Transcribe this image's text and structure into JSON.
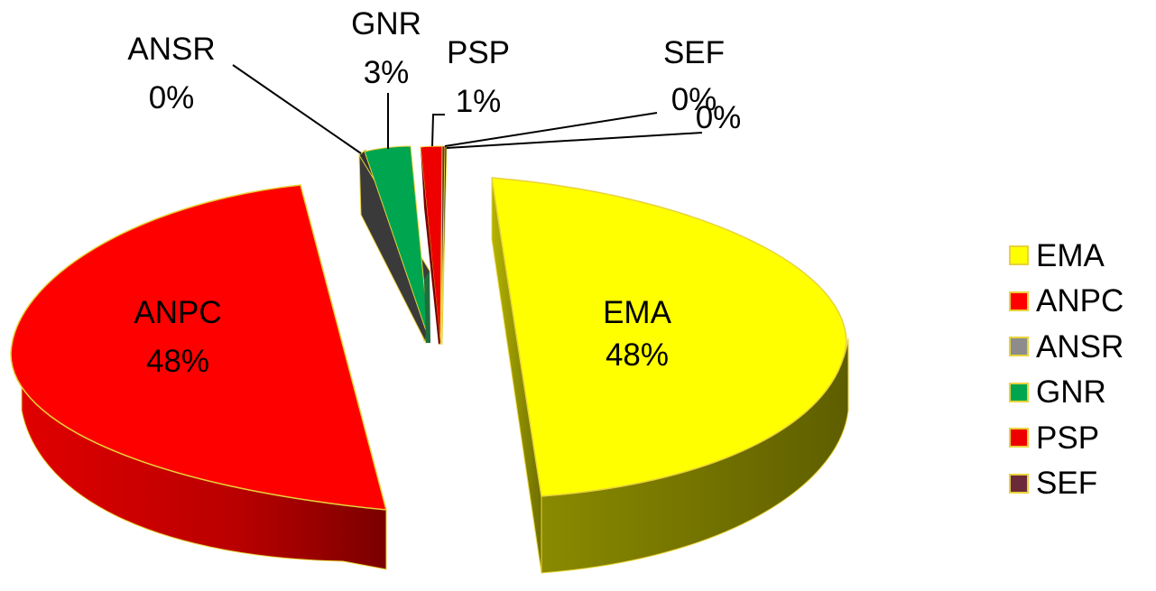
{
  "chart_data": {
    "type": "pie",
    "title": "",
    "categories": [
      "EMA",
      "ANPC",
      "ANSR",
      "GNR",
      "PSP",
      "SEF",
      ""
    ],
    "values": [
      48,
      48,
      0,
      3,
      1,
      0,
      0
    ],
    "labels": [
      {
        "name": "EMA",
        "percent": "48%"
      },
      {
        "name": "ANPC",
        "percent": "48%"
      },
      {
        "name": "ANSR",
        "percent": "0%"
      },
      {
        "name": "GNR",
        "percent": "3%"
      },
      {
        "name": "PSP",
        "percent": "1%"
      },
      {
        "name": "SEF",
        "percent": "0%"
      },
      {
        "name": "",
        "percent": "0%"
      }
    ],
    "colors": [
      "#ffff00",
      "#ff0000",
      "#333333",
      "#00a550",
      "#ee0000",
      "#6b2a3a",
      "#2a2a2a"
    ],
    "legend": {
      "position": "right",
      "entries": [
        {
          "label": "EMA",
          "color": "#ffff00"
        },
        {
          "label": "ANPC",
          "color": "#ff0000"
        },
        {
          "label": "ANSR",
          "color": "#8c8c8c"
        },
        {
          "label": "GNR",
          "color": "#00a550"
        },
        {
          "label": "PSP",
          "color": "#ee0000"
        },
        {
          "label": "SEF",
          "color": "#6b2a3a"
        }
      ]
    },
    "style": "3d-exploded"
  }
}
